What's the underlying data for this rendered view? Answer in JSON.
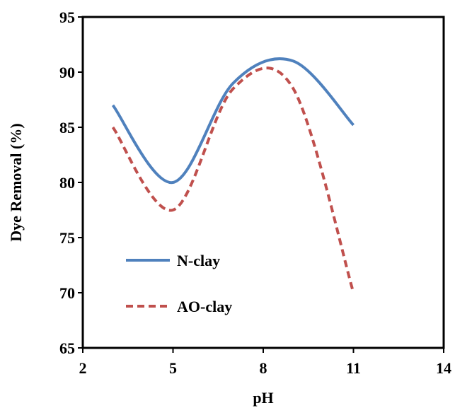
{
  "chart_data": {
    "type": "line",
    "xlabel": "pH",
    "ylabel": "Dye Removal (%)",
    "xlim": [
      2,
      14
    ],
    "ylim": [
      65,
      95
    ],
    "xticks": [
      2,
      5,
      8,
      11,
      14
    ],
    "yticks": [
      65,
      70,
      75,
      80,
      85,
      90,
      95
    ],
    "grid": false,
    "legend_position": "lower-left",
    "series": [
      {
        "name": "N-clay",
        "color": "#4f81bd",
        "style": "solid",
        "x": [
          3,
          5,
          7,
          9,
          11
        ],
        "y": [
          87,
          80,
          89,
          91,
          85.2
        ]
      },
      {
        "name": "AO-clay",
        "color": "#c0504d",
        "style": "dashed",
        "x": [
          3,
          5,
          7,
          9,
          11
        ],
        "y": [
          85,
          77.5,
          88.5,
          88.5,
          70
        ]
      }
    ]
  }
}
